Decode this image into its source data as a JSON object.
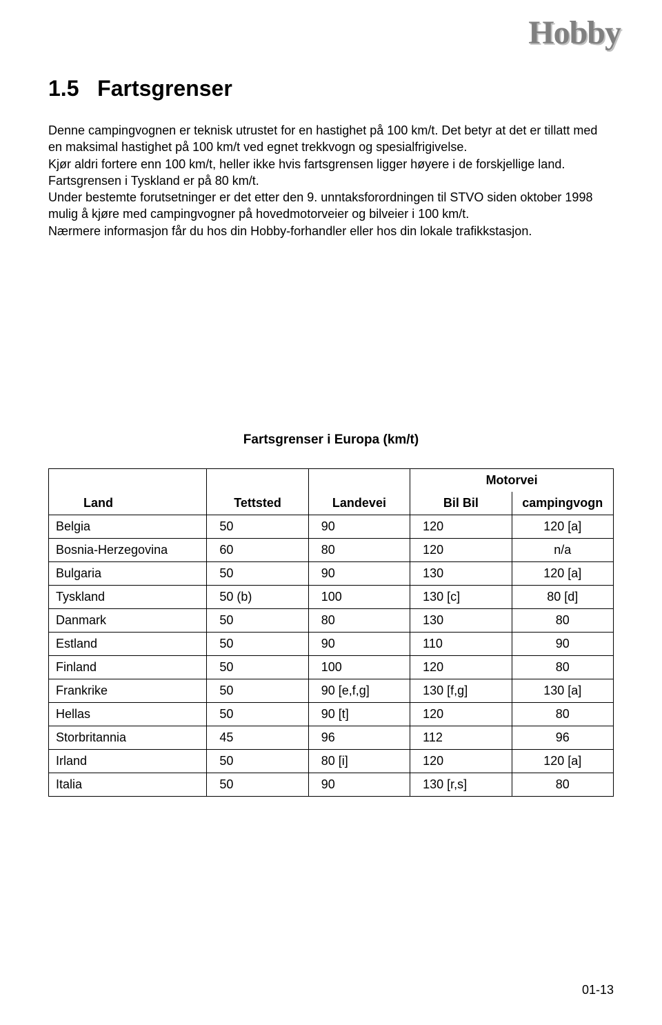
{
  "logo_text": "Hobby",
  "section_number": "1.5",
  "section_title": "Fartsgrenser",
  "paragraphs": [
    "Denne campingvognen er teknisk utrustet for en hastighet på 100 km/t. Det betyr at det er tillatt med en maksimal hastighet på 100 km/t ved egnet trekkvogn og spesialfrigivelse.",
    "Kjør aldri fortere enn 100 km/t, heller ikke hvis fartsgrensen ligger høyere i de forskjellige land. Fartsgrensen i Tyskland er på 80 km/t.",
    "Under bestemte forutsetninger er det etter den 9. unntaksforordningen til STVO siden oktober 1998 mulig å kjøre med campingvogner på hovedmotorveier og bilveier i 100 km/t.",
    "Nærmere informasjon får du hos din Hobby-forhandler eller hos din lokale trafikkstasjon."
  ],
  "table_title": "Fartsgrenser i Europa (km/t)",
  "table_header_motorvei": "Motorvei",
  "columns": {
    "land": "Land",
    "tettsted": "Tettsted",
    "landevei": "Landevei",
    "bil": "Bil Bil",
    "campingvogn": "campingvogn"
  },
  "rows": [
    {
      "land": "Belgia",
      "tettsted": "50",
      "landevei": "90",
      "bil": "120",
      "camping": "120 [a]"
    },
    {
      "land": "Bosnia-Herzegovina",
      "tettsted": "60",
      "landevei": "80",
      "bil": "120",
      "camping": "n/a"
    },
    {
      "land": "Bulgaria",
      "tettsted": "50",
      "landevei": "90",
      "bil": "130",
      "camping": "120 [a]"
    },
    {
      "land": "Tyskland",
      "tettsted": "50 (b)",
      "landevei": "100",
      "bil": "130 [c]",
      "camping": "80 [d]"
    },
    {
      "land": "Danmark",
      "tettsted": "50",
      "landevei": "80",
      "bil": "130",
      "camping": "80"
    },
    {
      "land": "Estland",
      "tettsted": "50",
      "landevei": "90",
      "bil": "110",
      "camping": "90"
    },
    {
      "land": "Finland",
      "tettsted": "50",
      "landevei": "100",
      "bil": "120",
      "camping": "80"
    },
    {
      "land": "Frankrike",
      "tettsted": "50",
      "landevei": "90 [e,f,g]",
      "bil": "130 [f,g]",
      "camping": "130 [a]"
    },
    {
      "land": "Hellas",
      "tettsted": "50",
      "landevei": "90 [t]",
      "bil": "120",
      "camping": "80"
    },
    {
      "land": "Storbritannia",
      "tettsted": "45",
      "landevei": "96",
      "bil": "112",
      "camping": "96"
    },
    {
      "land": "Irland",
      "tettsted": "50",
      "landevei": "80 [i]",
      "bil": "120",
      "camping": "120 [a]"
    },
    {
      "land": "Italia",
      "tettsted": "50",
      "landevei": "90",
      "bil": "130 [r,s]",
      "camping": "80"
    }
  ],
  "page_number": "01-13",
  "colors": {
    "text": "#000000",
    "background": "#ffffff",
    "logo": "#808080",
    "logo_shadow": "#c0c0c0",
    "border": "#000000"
  },
  "fonts": {
    "body": "Arial, Helvetica, sans-serif",
    "logo": "Georgia, Times New Roman, serif",
    "title_size": 32,
    "body_size": 18,
    "table_title_size": 19,
    "logo_size": 48
  }
}
